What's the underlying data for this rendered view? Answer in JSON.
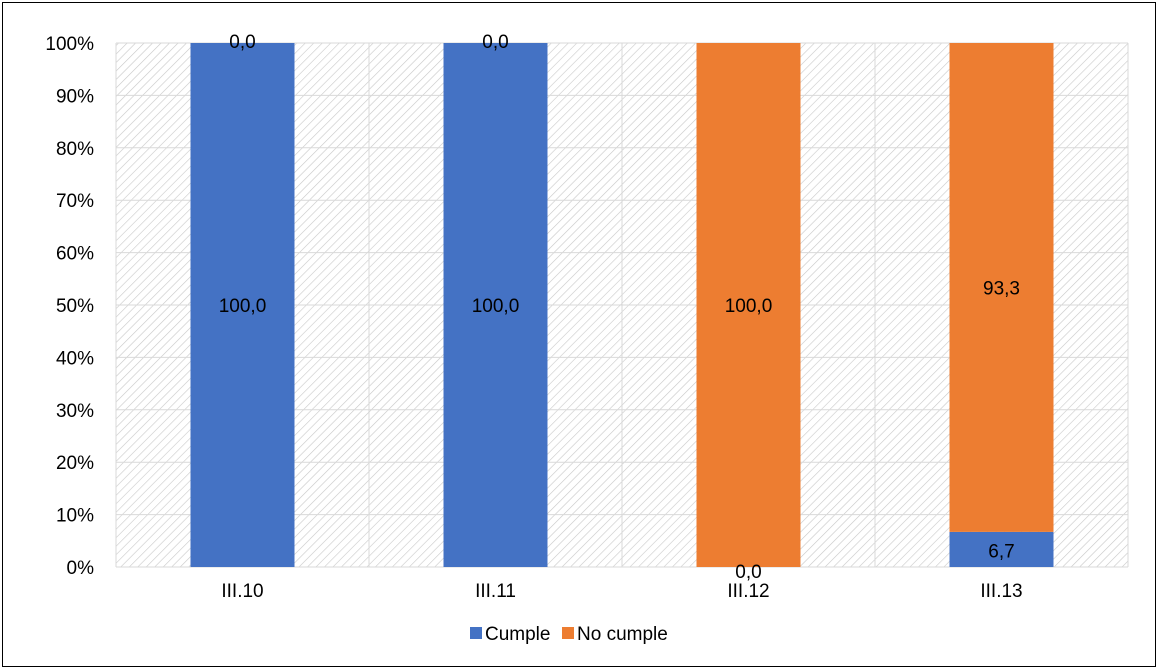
{
  "chart_data": {
    "type": "bar",
    "stacked": true,
    "normalized_percent": true,
    "categories": [
      "III.10",
      "III.11",
      "III.12",
      "III.13"
    ],
    "series": [
      {
        "name": "Cumple",
        "values": [
          100.0,
          100.0,
          0.0,
          6.7
        ],
        "labels": [
          "100,0",
          "100,0",
          "0,0",
          "6,7"
        ],
        "color": "#4472C4"
      },
      {
        "name": "No cumple",
        "values": [
          0.0,
          0.0,
          100.0,
          93.3
        ],
        "labels": [
          "0,0",
          "0,0",
          "100,0",
          "93,3"
        ],
        "color": "#ED7D31"
      }
    ],
    "y_ticks": [
      "0%",
      "10%",
      "20%",
      "30%",
      "40%",
      "50%",
      "60%",
      "70%",
      "80%",
      "90%",
      "100%"
    ],
    "ylim": [
      0,
      100
    ],
    "grid": true,
    "plot_pattern": "diagonal hatch",
    "legend_position": "bottom"
  }
}
